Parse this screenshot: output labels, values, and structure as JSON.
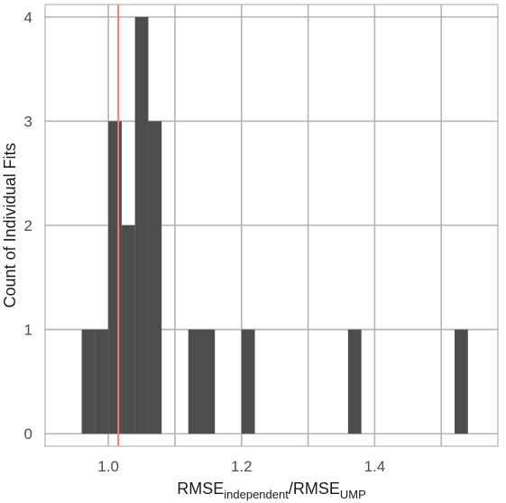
{
  "chart_data": {
    "type": "bar",
    "subtype": "histogram",
    "xlabel": {
      "parts": [
        {
          "text": "RMSE",
          "sub": false
        },
        {
          "text": "independent",
          "sub": true
        },
        {
          "text": "/RMSE",
          "sub": false
        },
        {
          "text": "UMP",
          "sub": true
        }
      ]
    },
    "ylabel": "Count of Individual Fits",
    "xlim": [
      0.905,
      1.585
    ],
    "ylim": [
      -0.12,
      4.12
    ],
    "x_ticks": [
      {
        "value": 1.0,
        "label": "1.0"
      },
      {
        "value": 1.2,
        "label": "1.2"
      },
      {
        "value": 1.4,
        "label": "1.4"
      }
    ],
    "y_ticks": [
      {
        "value": 0,
        "label": "0"
      },
      {
        "value": 1,
        "label": "1"
      },
      {
        "value": 2,
        "label": "2"
      },
      {
        "value": 3,
        "label": "3"
      },
      {
        "value": 4,
        "label": "4"
      }
    ],
    "bin_width": 0.02,
    "bins": [
      {
        "x": 0.97,
        "count": 1
      },
      {
        "x": 0.99,
        "count": 1
      },
      {
        "x": 1.01,
        "count": 3
      },
      {
        "x": 1.03,
        "count": 2
      },
      {
        "x": 1.05,
        "count": 4
      },
      {
        "x": 1.07,
        "count": 3
      },
      {
        "x": 1.09,
        "count": 0
      },
      {
        "x": 1.11,
        "count": 0
      },
      {
        "x": 1.13,
        "count": 1
      },
      {
        "x": 1.15,
        "count": 1
      },
      {
        "x": 1.17,
        "count": 0
      },
      {
        "x": 1.19,
        "count": 0
      },
      {
        "x": 1.21,
        "count": 1
      },
      {
        "x": 1.23,
        "count": 0
      },
      {
        "x": 1.25,
        "count": 0
      },
      {
        "x": 1.27,
        "count": 0
      },
      {
        "x": 1.29,
        "count": 0
      },
      {
        "x": 1.31,
        "count": 0
      },
      {
        "x": 1.33,
        "count": 0
      },
      {
        "x": 1.35,
        "count": 0
      },
      {
        "x": 1.37,
        "count": 1
      },
      {
        "x": 1.39,
        "count": 0
      },
      {
        "x": 1.41,
        "count": 0
      },
      {
        "x": 1.43,
        "count": 0
      },
      {
        "x": 1.45,
        "count": 0
      },
      {
        "x": 1.47,
        "count": 0
      },
      {
        "x": 1.49,
        "count": 0
      },
      {
        "x": 1.51,
        "count": 0
      },
      {
        "x": 1.53,
        "count": 1
      }
    ],
    "reference_line": {
      "x": 1.015,
      "color": "#f8766d"
    },
    "bar_color": "#4d4d4d",
    "grid": true,
    "grid_color": "#b3b3b3",
    "panel_border_color": "#b3b3b3"
  }
}
